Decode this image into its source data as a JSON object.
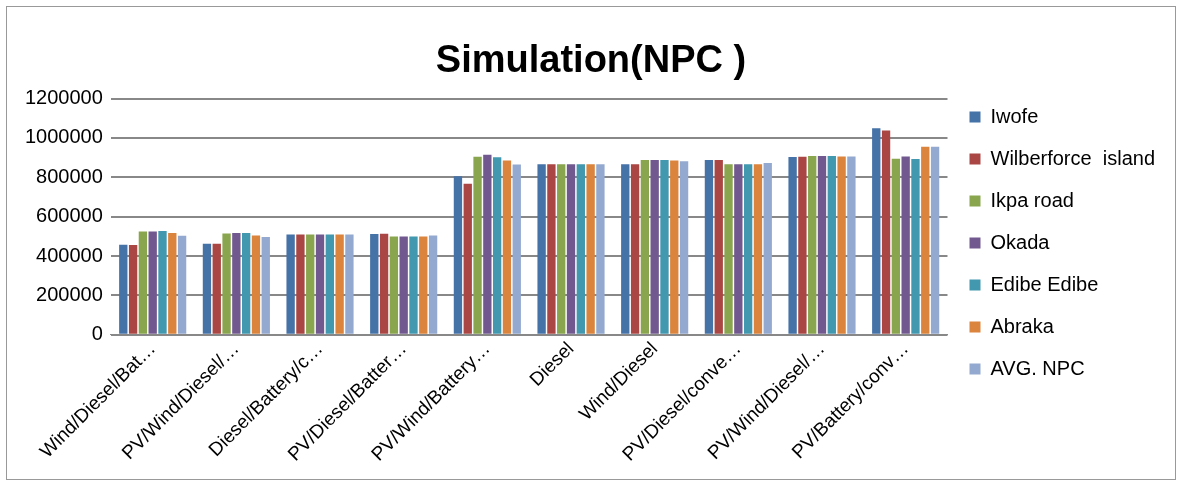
{
  "chart_data": {
    "type": "bar",
    "title": "Simulation(NPC )",
    "categories": [
      "Wind/Diesel/Bat…",
      "PV/Wind/Diesel/…",
      "Diesel/Battery/c…",
      "PV/Diesel/Batter…",
      "PV/Wind/Battery…",
      "Diesel",
      "Wind/Diesel",
      "PV/Diesel/conve…",
      "PV/Wind/Diesel/…",
      "PV/Battery/conv…"
    ],
    "series": [
      {
        "name": "Iwofe",
        "color": "#4572a7",
        "values": [
          458000,
          463000,
          510000,
          512000,
          805000,
          866000,
          866000,
          888000,
          904000,
          1049000
        ]
      },
      {
        "name": "Wilberforce  island",
        "color": "#aa4643",
        "values": [
          457000,
          463000,
          510000,
          513000,
          767000,
          866000,
          866000,
          888000,
          905000,
          1038000
        ]
      },
      {
        "name": "Ikpa road",
        "color": "#89a54e",
        "values": [
          525000,
          515000,
          510000,
          500000,
          905000,
          866000,
          888000,
          866000,
          908000,
          895000
        ]
      },
      {
        "name": "Okada",
        "color": "#71588f",
        "values": [
          525000,
          518000,
          510000,
          500000,
          915000,
          866000,
          888000,
          866000,
          908000,
          906000
        ]
      },
      {
        "name": "Edibe Edibe",
        "color": "#4198af",
        "values": [
          527000,
          517000,
          510000,
          500000,
          902000,
          866000,
          888000,
          866000,
          908000,
          893000
        ]
      },
      {
        "name": "Abraka",
        "color": "#db843d",
        "values": [
          518000,
          505000,
          510000,
          500000,
          885000,
          866000,
          886000,
          866000,
          906000,
          955000
        ]
      },
      {
        "name": "AVG. NPC",
        "color": "#93a9cf",
        "values": [
          503000,
          497000,
          510000,
          505000,
          865000,
          866000,
          882000,
          873000,
          906000,
          955000
        ]
      }
    ],
    "ylim": [
      0,
      1200000
    ],
    "yticks": [
      0,
      200000,
      400000,
      600000,
      800000,
      1000000,
      1200000
    ],
    "grid": "y",
    "legend": "right"
  }
}
